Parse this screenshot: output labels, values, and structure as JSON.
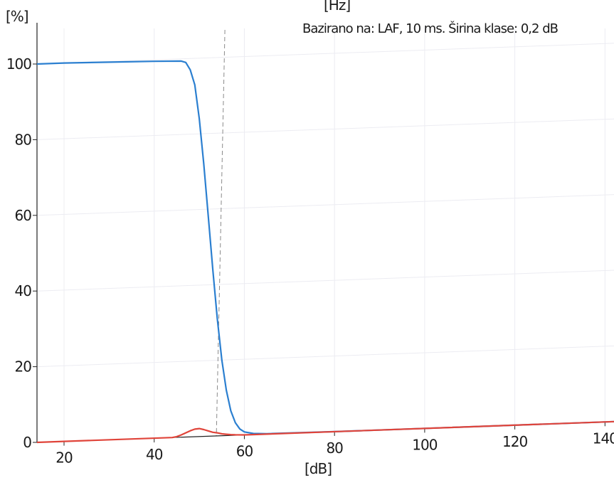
{
  "chart_data": {
    "type": "line",
    "xlabel": "[dB]",
    "ylabel": "[%]",
    "top_unit": "[Hz]",
    "note": "Bazirano na: LAF, 10 ms. Širina klase: 0,2 dB",
    "xlim": [
      14,
      142
    ],
    "ylim": [
      0,
      110
    ],
    "x_ticks": [
      20,
      40,
      60,
      80,
      100,
      120,
      140
    ],
    "y_ticks": [
      0,
      20,
      40,
      60,
      80,
      100
    ],
    "grid": true,
    "legend": "none",
    "marker_x": 56,
    "series": [
      {
        "color": "#2b7fd0",
        "points": [
          [
            14,
            100
          ],
          [
            20,
            100
          ],
          [
            30,
            99.8
          ],
          [
            40,
            99.6
          ],
          [
            46,
            99.4
          ],
          [
            47,
            99
          ],
          [
            48,
            97
          ],
          [
            49,
            93
          ],
          [
            50,
            84
          ],
          [
            51,
            72
          ],
          [
            52,
            58
          ],
          [
            53,
            44
          ],
          [
            54,
            31
          ],
          [
            55,
            20
          ],
          [
            56,
            12
          ],
          [
            57,
            6.5
          ],
          [
            58,
            3.3
          ],
          [
            59,
            1.6
          ],
          [
            60,
            0.8
          ],
          [
            62,
            0.3
          ],
          [
            65,
            0.1
          ],
          [
            80,
            0
          ],
          [
            142,
            0
          ]
        ]
      },
      {
        "color": "#e0443a",
        "points": [
          [
            14,
            0
          ],
          [
            44,
            0
          ],
          [
            45,
            0.2
          ],
          [
            46,
            0.6
          ],
          [
            47,
            1.1
          ],
          [
            48,
            1.6
          ],
          [
            49,
            2.0
          ],
          [
            50,
            2.1
          ],
          [
            51,
            1.8
          ],
          [
            52,
            1.4
          ],
          [
            53,
            1.0
          ],
          [
            54,
            0.8
          ],
          [
            55,
            0.5
          ],
          [
            56,
            0.35
          ],
          [
            57,
            0.2
          ],
          [
            58,
            0.1
          ],
          [
            60,
            0
          ],
          [
            142,
            0
          ]
        ]
      }
    ]
  }
}
